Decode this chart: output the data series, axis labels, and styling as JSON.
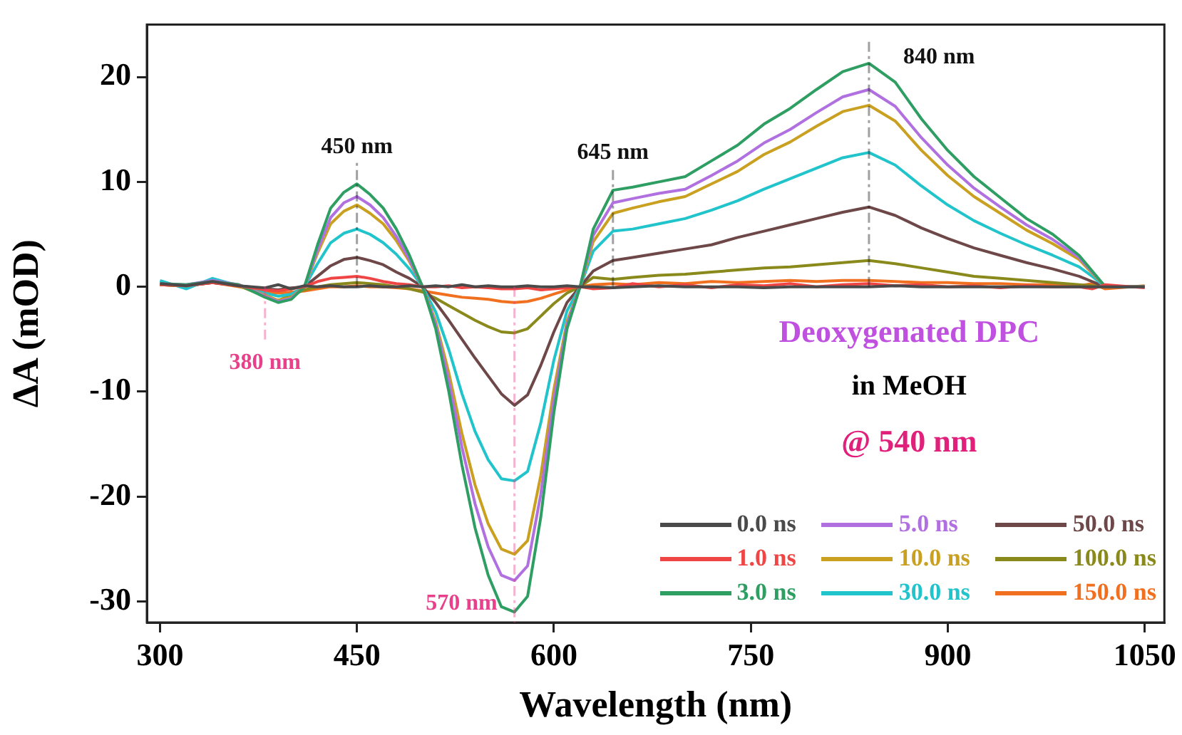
{
  "chart_data": {
    "type": "line",
    "xlabel": "Wavelength (nm)",
    "ylabel": "ΔA (mOD)",
    "x": [
      300,
      320,
      340,
      360,
      380,
      390,
      400,
      410,
      420,
      430,
      440,
      450,
      460,
      470,
      480,
      490,
      500,
      510,
      520,
      530,
      540,
      550,
      560,
      570,
      580,
      590,
      600,
      610,
      620,
      630,
      645,
      660,
      680,
      700,
      720,
      740,
      760,
      780,
      800,
      820,
      840,
      860,
      880,
      900,
      920,
      940,
      960,
      980,
      1000,
      1010,
      1020,
      1050
    ],
    "xlim": [
      290,
      1065
    ],
    "xticks": [
      300,
      450,
      600,
      750,
      900,
      1050
    ],
    "ylim": [
      -32,
      25
    ],
    "yticks": [
      -30,
      -20,
      -10,
      0,
      10,
      20
    ],
    "grid": false,
    "legend": "bottom right",
    "marker": "none",
    "line_style": "solid",
    "series": [
      {
        "name": "0.0 ns",
        "color": "#4a4a4a",
        "values": [
          0.3,
          0.1,
          0.5,
          0.1,
          -0.1,
          0.2,
          -0.2,
          0.1,
          0,
          0.1,
          0,
          0,
          0.1,
          0,
          0,
          0.1,
          0,
          0.1,
          0,
          0.2,
          0,
          0.1,
          0,
          0,
          0.1,
          0,
          0,
          0.1,
          0,
          0,
          -0.1,
          0,
          0.1,
          0,
          0,
          0,
          -0.1,
          0,
          0,
          0,
          0,
          0.1,
          0,
          0,
          0,
          0,
          0,
          0,
          0,
          0,
          0,
          0
        ]
      },
      {
        "name": "1.0 ns",
        "color": "#f04545",
        "values": [
          0.2,
          0.1,
          0.4,
          0.1,
          -0.3,
          -0.4,
          -0.2,
          0,
          0.5,
          0.8,
          0.9,
          1.0,
          0.8,
          0.5,
          0.3,
          0.2,
          0,
          0,
          0.1,
          -0.1,
          0,
          -0.1,
          -0.2,
          -0.2,
          -0.1,
          -0.3,
          -0.2,
          -0.1,
          0,
          -0.2,
          -0.1,
          0.3,
          0,
          0.2,
          -0.1,
          0.2,
          0.1,
          0.3,
          0,
          0.2,
          0.3,
          0.1,
          0.2,
          0,
          0.1,
          -0.1,
          0.1,
          0,
          0,
          -0.2,
          0.2,
          -0.1
        ]
      },
      {
        "name": "3.0 ns",
        "color": "#2e9e63",
        "values": [
          0.3,
          0.2,
          0.5,
          0.2,
          -1.0,
          -1.5,
          -1.2,
          0,
          4.0,
          7.5,
          9.0,
          9.8,
          8.8,
          7.5,
          5.5,
          3.0,
          0,
          -4,
          -10,
          -17,
          -23,
          -27.5,
          -30.5,
          -31,
          -29.5,
          -22,
          -12,
          -4,
          0,
          5.5,
          9.2,
          9.5,
          10.0,
          10.5,
          12,
          13.5,
          15.5,
          17,
          18.8,
          20.5,
          21.3,
          19.5,
          16,
          13,
          10.5,
          8.5,
          6.5,
          5.0,
          3.0,
          1.5,
          0,
          0
        ]
      },
      {
        "name": "5.0 ns",
        "color": "#b070e0",
        "values": [
          0.3,
          0.2,
          0.6,
          0.2,
          -0.9,
          -1.4,
          -1.1,
          0,
          3.5,
          6.6,
          8.0,
          8.6,
          7.8,
          6.6,
          4.8,
          2.6,
          0,
          -3.6,
          -9,
          -15.3,
          -20.7,
          -24.8,
          -27.5,
          -28,
          -26.6,
          -19.8,
          -10.8,
          -3.6,
          0,
          4.9,
          8.0,
          8.4,
          8.9,
          9.3,
          10.6,
          12,
          13.7,
          15,
          16.6,
          18.1,
          18.8,
          17.2,
          14.2,
          11.6,
          9.4,
          7.6,
          5.9,
          4.5,
          2.8,
          1.4,
          0,
          0
        ]
      },
      {
        "name": "10.0 ns",
        "color": "#c9a020",
        "values": [
          0.2,
          0.1,
          0.5,
          0.1,
          -0.8,
          -1.3,
          -1.0,
          0,
          3.2,
          6.0,
          7.2,
          7.8,
          7.0,
          6.0,
          4.4,
          2.4,
          0,
          -3.3,
          -8.2,
          -14,
          -18.9,
          -22.6,
          -25,
          -25.5,
          -24.2,
          -18,
          -9.8,
          -3.3,
          0,
          4.3,
          7.0,
          7.5,
          8.1,
          8.6,
          9.8,
          11,
          12.6,
          13.8,
          15.3,
          16.7,
          17.3,
          15.8,
          13,
          10.6,
          8.6,
          7,
          5.4,
          4.1,
          2.6,
          1.3,
          0,
          0
        ]
      },
      {
        "name": "30.0 ns",
        "color": "#22c4cc",
        "values": [
          0.6,
          -0.2,
          0.8,
          0.1,
          -0.6,
          -0.9,
          -0.7,
          0,
          2.2,
          4.2,
          5.1,
          5.5,
          5.0,
          4.2,
          3.1,
          1.7,
          0,
          -2.4,
          -6,
          -10.2,
          -13.8,
          -16.5,
          -18.3,
          -18.5,
          -17.6,
          -13,
          -7,
          -2.3,
          0,
          3.4,
          5.3,
          5.5,
          6,
          6.5,
          7.3,
          8.2,
          9.3,
          10.3,
          11.3,
          12.3,
          12.8,
          11.6,
          9.6,
          7.8,
          6.3,
          5.1,
          4,
          3,
          1.9,
          1,
          0,
          0
        ]
      },
      {
        "name": "50.0 ns",
        "color": "#6e4848",
        "values": [
          0.2,
          0.1,
          0.4,
          0.1,
          -0.2,
          -0.3,
          -0.1,
          0,
          1.0,
          2.0,
          2.6,
          2.8,
          2.5,
          2.1,
          1.4,
          0.8,
          0,
          -1.5,
          -3.2,
          -5,
          -6.8,
          -8.5,
          -10.2,
          -11.3,
          -10.3,
          -7.5,
          -4.3,
          -1.5,
          0,
          1.5,
          2.5,
          2.8,
          3.2,
          3.6,
          4.0,
          4.7,
          5.3,
          5.9,
          6.5,
          7.1,
          7.6,
          6.8,
          5.6,
          4.6,
          3.7,
          3.0,
          2.3,
          1.7,
          1.0,
          0.5,
          0,
          0
        ]
      },
      {
        "name": "100.0 ns",
        "color": "#8a8a1c",
        "values": [
          0.2,
          0.1,
          0.4,
          0.1,
          -0.9,
          -1.3,
          -0.8,
          -0.3,
          0,
          0.2,
          0.3,
          0.4,
          0.3,
          0.2,
          0,
          -0.2,
          -0.5,
          -1.1,
          -1.8,
          -2.5,
          -3.2,
          -3.8,
          -4.3,
          -4.4,
          -4.0,
          -2.8,
          -1.6,
          -0.6,
          0,
          0.9,
          0.7,
          0.9,
          1.1,
          1.2,
          1.4,
          1.6,
          1.8,
          1.9,
          2.1,
          2.3,
          2.5,
          2.2,
          1.8,
          1.4,
          1.0,
          0.8,
          0.6,
          0.4,
          0.2,
          0.1,
          0,
          0
        ]
      },
      {
        "name": "150.0 ns",
        "color": "#f07020",
        "values": [
          0.2,
          0.1,
          0.4,
          0,
          -0.5,
          -0.6,
          -0.5,
          -0.4,
          -0.2,
          0,
          0,
          0.1,
          0,
          0,
          -0.1,
          -0.2,
          -0.4,
          -0.6,
          -0.8,
          -1.0,
          -1.1,
          -1.2,
          -1.4,
          -1.5,
          -1.4,
          -1.1,
          -0.7,
          -0.3,
          0,
          0.2,
          0.3,
          0.2,
          0.4,
          0.3,
          0.5,
          0.4,
          0.5,
          0.6,
          0.5,
          0.6,
          0.6,
          0.5,
          0.4,
          0.4,
          0.3,
          0.3,
          0.2,
          0.2,
          0.1,
          0.3,
          -0.2,
          0.1
        ]
      }
    ],
    "ref_lines": [
      {
        "axis": "x",
        "value": 380,
        "label": "380 nm",
        "color": "#e8408a",
        "line_style": "dashed"
      },
      {
        "axis": "x",
        "value": 450,
        "label": "450 nm",
        "color": "#111111",
        "line_style": "dashed"
      },
      {
        "axis": "x",
        "value": 570,
        "label": "570 nm",
        "color": "#e8408a",
        "line_style": "dashed"
      },
      {
        "axis": "x",
        "value": 645,
        "label": "645 nm",
        "color": "#111111",
        "line_style": "dashed"
      },
      {
        "axis": "x",
        "value": 840,
        "label": "840 nm",
        "color": "#111111",
        "line_style": "dashed"
      }
    ],
    "annotations": [
      "Deoxygenated DPC",
      "in MeOH",
      "@ 540 nm"
    ]
  }
}
